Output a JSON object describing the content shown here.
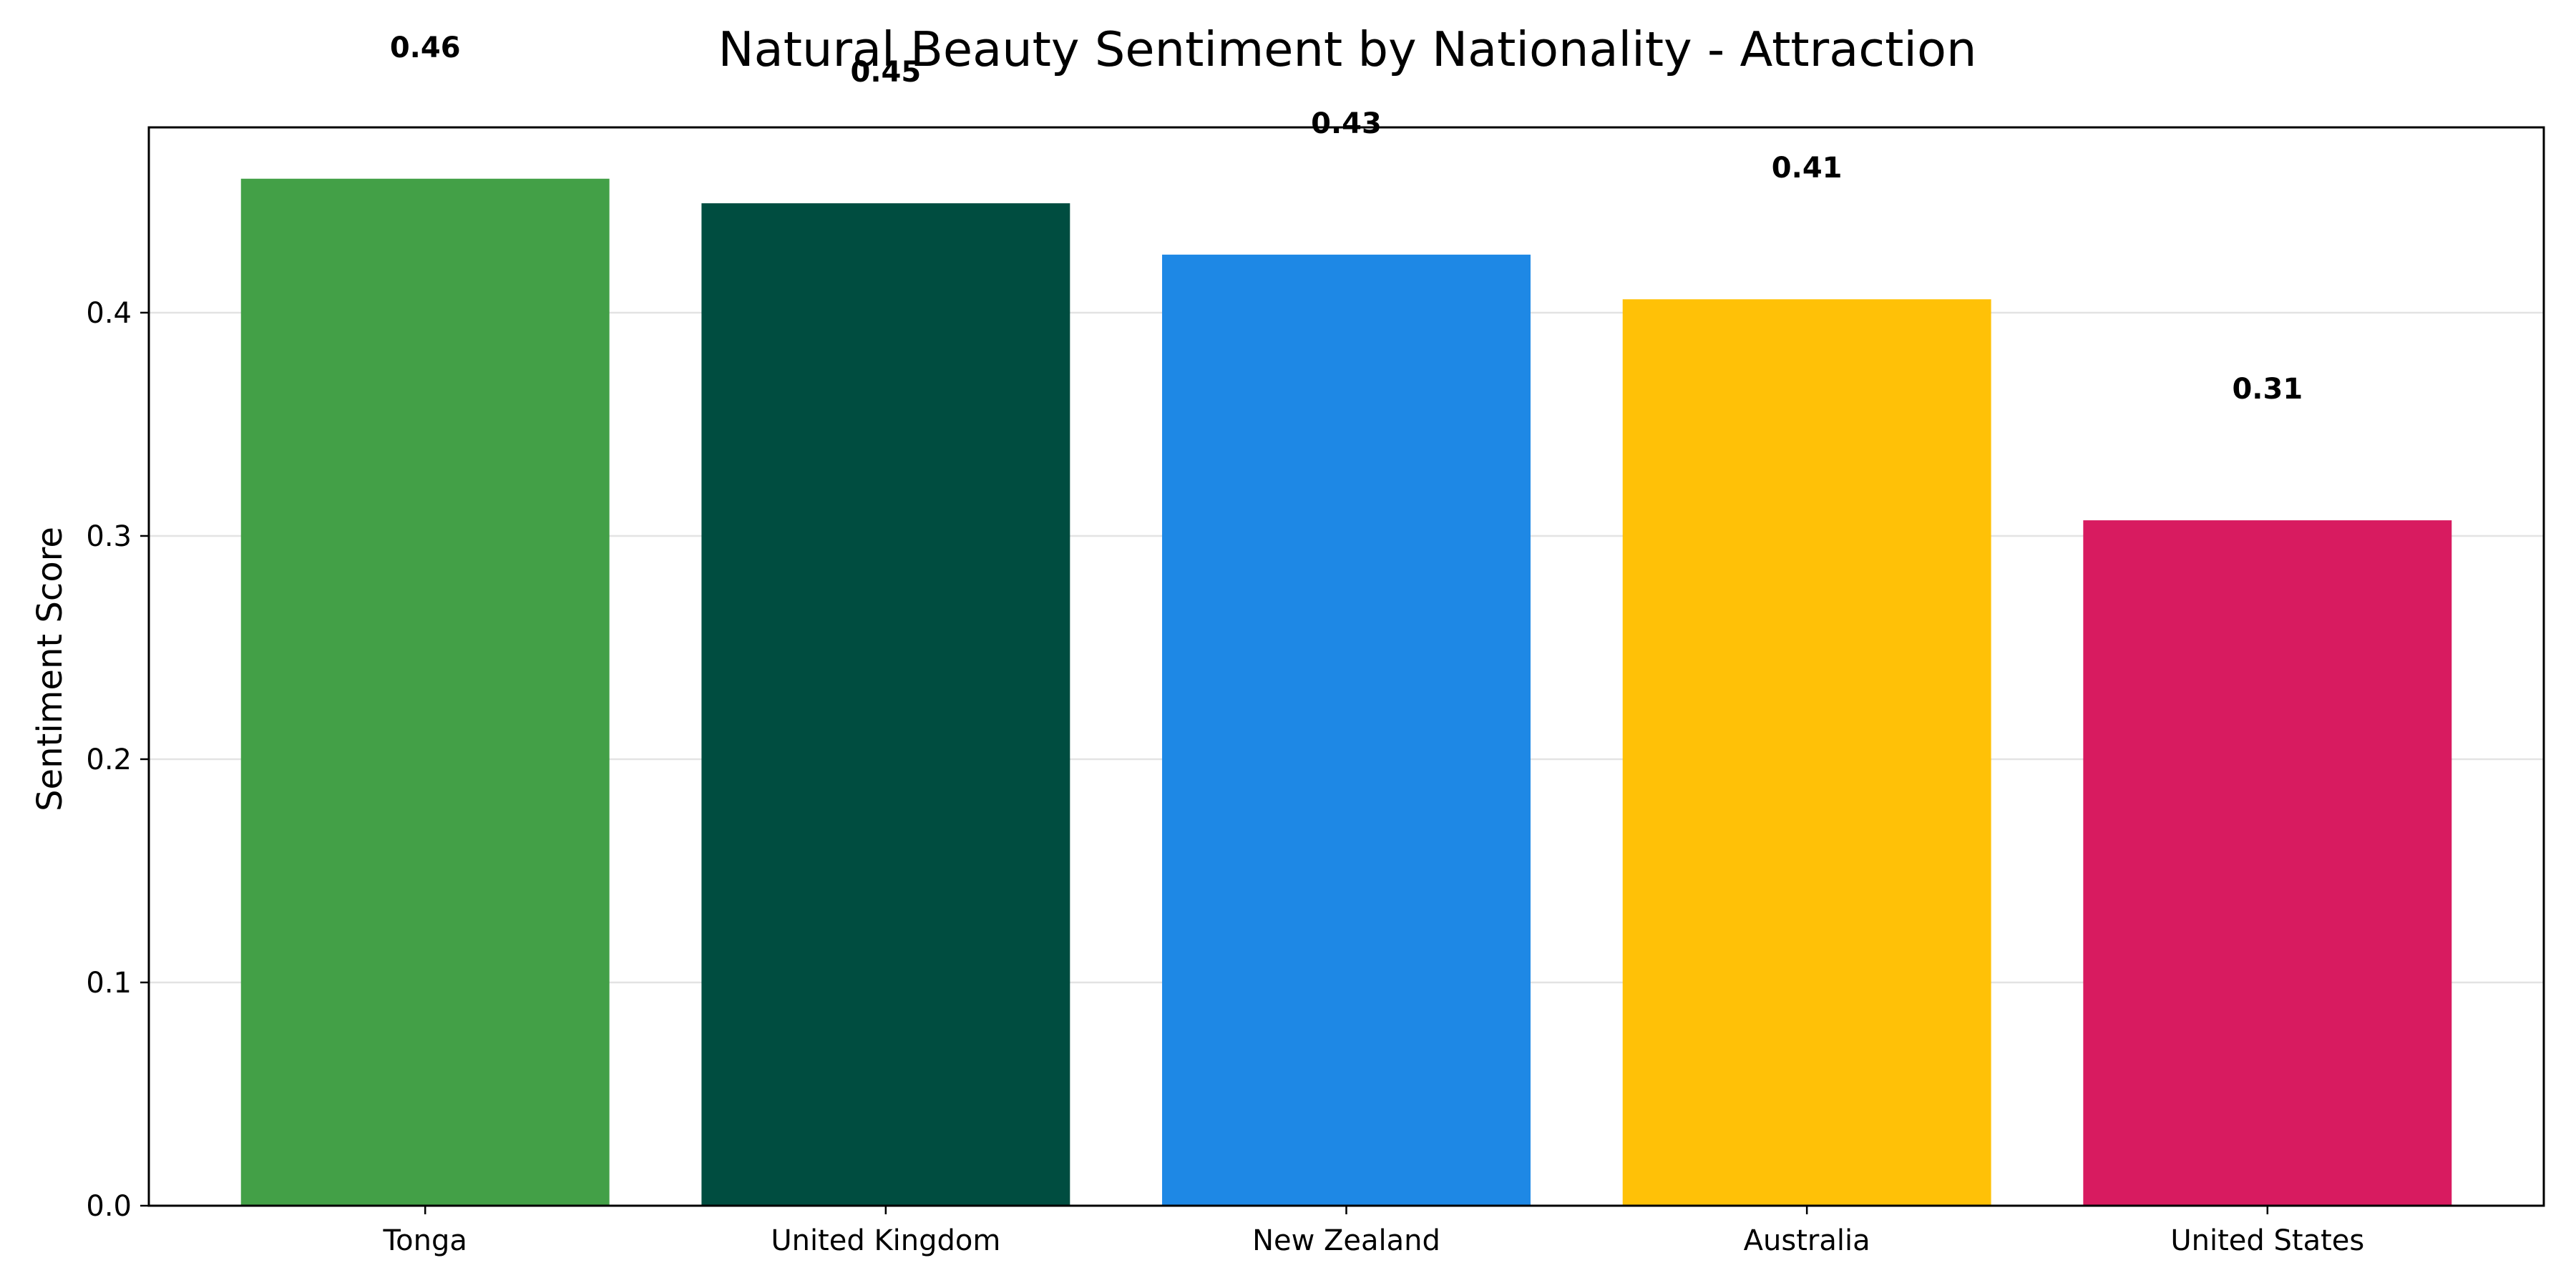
{
  "chart_data": {
    "type": "bar",
    "title": "Natural Beauty Sentiment by Nationality - Attraction",
    "xlabel": "",
    "ylabel": "Sentiment Score",
    "categories": [
      "Tonga",
      "United Kingdom",
      "New Zealand",
      "Australia",
      "United States"
    ],
    "values": [
      0.46,
      0.449,
      0.426,
      0.406,
      0.307
    ],
    "value_labels": [
      "0.46",
      "0.45",
      "0.43",
      "0.41",
      "0.31"
    ],
    "colors": [
      "#43A047",
      "#004D40",
      "#1E88E5",
      "#FFC107",
      "#D81B60"
    ],
    "ylim": [
      0,
      0.483
    ],
    "yticks": [
      0.0,
      0.1,
      0.2,
      0.3,
      0.4
    ],
    "ytick_labels": [
      "0.0",
      "0.1",
      "0.2",
      "0.3",
      "0.4"
    ],
    "grid": true,
    "grid_axis": "y",
    "legend": "none"
  }
}
